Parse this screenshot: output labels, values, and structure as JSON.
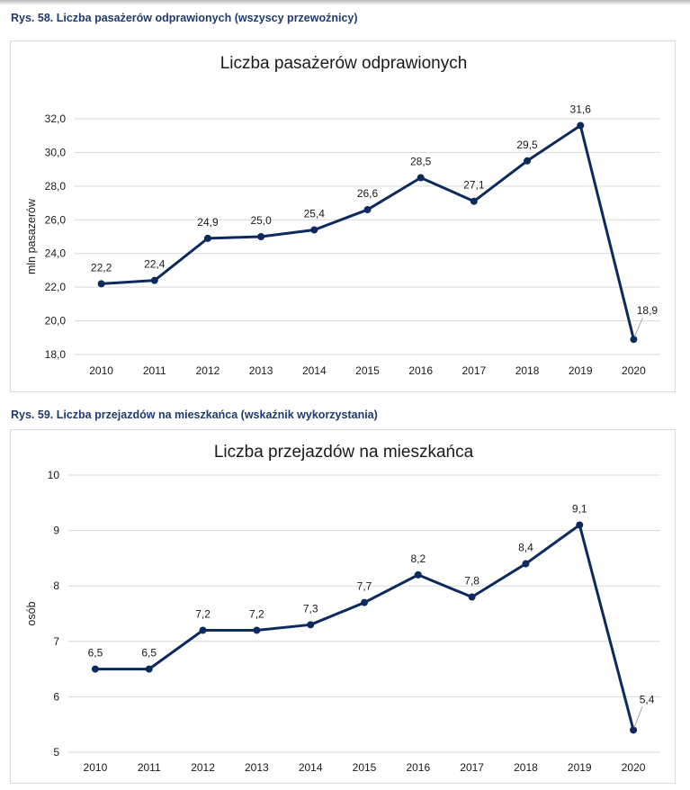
{
  "figures": [
    {
      "caption": "Rys. 58. Liczba pasażerów odprawionych (wszyscy przewoźnicy)"
    },
    {
      "caption": "Rys. 59. Liczba przejazdów na mieszkańca (wskaźnik wykorzystania)"
    }
  ],
  "colors": {
    "caption": "#1f3a6e",
    "line": "#0d2a5e",
    "grid": "#d9d9d9",
    "leader": "#a6a6a6"
  },
  "chart_data": [
    {
      "type": "line",
      "title": "Liczba pasażerów odprawionych",
      "xlabel": "",
      "ylabel": "mln pasazerów",
      "categories": [
        "2010",
        "2011",
        "2012",
        "2013",
        "2014",
        "2015",
        "2016",
        "2017",
        "2018",
        "2019",
        "2020"
      ],
      "series": [
        {
          "name": "Liczba pasażerów odprawionych",
          "values": [
            22.2,
            22.4,
            24.9,
            25.0,
            25.4,
            26.6,
            28.5,
            27.1,
            29.5,
            31.6,
            18.9
          ],
          "labels": [
            "22,2",
            "22,4",
            "24,9",
            "25,0",
            "25,4",
            "26,6",
            "28,5",
            "27,1",
            "29,5",
            "31,6",
            "18,9"
          ]
        }
      ],
      "ylim": [
        18,
        32
      ],
      "yticks": [
        18,
        20,
        22,
        24,
        26,
        28,
        30,
        32
      ],
      "ytick_labels": [
        "18,0",
        "20,0",
        "22,0",
        "24,0",
        "26,0",
        "28,0",
        "30,0",
        "32,0"
      ],
      "grid": true,
      "legend": "none"
    },
    {
      "type": "line",
      "title": "Liczba przejazdów na mieszkańca",
      "xlabel": "",
      "ylabel": "osób",
      "categories": [
        "2010",
        "2011",
        "2012",
        "2013",
        "2014",
        "2015",
        "2016",
        "2017",
        "2018",
        "2019",
        "2020"
      ],
      "series": [
        {
          "name": "Liczba przejazdów na mieszkańca",
          "values": [
            6.5,
            6.5,
            7.2,
            7.2,
            7.3,
            7.7,
            8.2,
            7.8,
            8.4,
            9.1,
            5.4
          ],
          "labels": [
            "6,5",
            "6,5",
            "7,2",
            "7,2",
            "7,3",
            "7,7",
            "8,2",
            "7,8",
            "8,4",
            "9,1",
            "5,4"
          ]
        }
      ],
      "ylim": [
        5,
        10
      ],
      "yticks": [
        5,
        6,
        7,
        8,
        9,
        10
      ],
      "ytick_labels": [
        "5",
        "6",
        "7",
        "8",
        "9",
        "10"
      ],
      "grid": true,
      "legend": "none"
    }
  ]
}
